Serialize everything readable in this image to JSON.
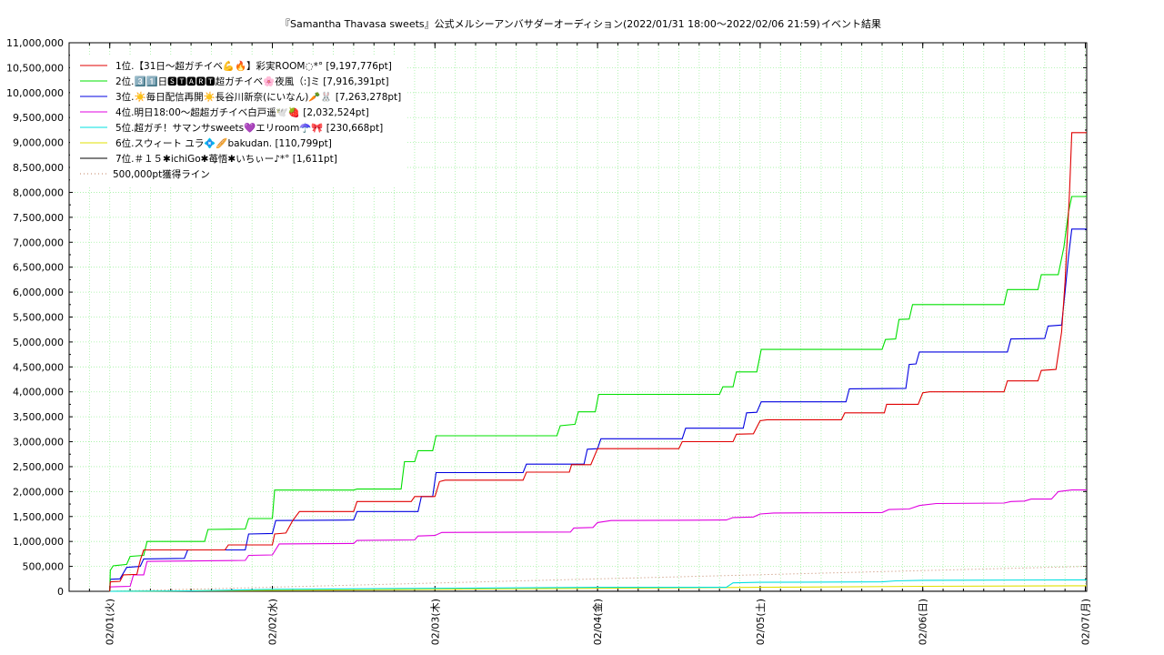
{
  "chart_data": {
    "type": "line",
    "title": "『Samantha Thavasa sweets』公式メルシーアンバサダーオーディション(2022/01/31 18:00〜2022/02/06 21:59)",
    "subtitle": "イベント結果",
    "xlabel": "",
    "ylabel": "",
    "x_ticks": [
      "02/01(火)",
      "02/02(水)",
      "02/03(木)",
      "02/04(金)",
      "02/05(土)",
      "02/06(日)",
      "02/07(月)"
    ],
    "x_range": [
      "2022-01-31 18:00",
      "2022-02-07 00:12"
    ],
    "ylim": [
      0,
      11000000
    ],
    "y_ticks": [
      "0",
      "500,000",
      "1,000,000",
      "1,500,000",
      "2,000,000",
      "2,500,000",
      "3,000,000",
      "3,500,000",
      "4,000,000",
      "4,500,000",
      "5,000,000",
      "5,500,000",
      "6,000,000",
      "6,500,000",
      "7,000,000",
      "7,500,000",
      "8,000,000",
      "8,500,000",
      "9,000,000",
      "9,500,000",
      "10,000,000",
      "10,500,000",
      "11,000,000"
    ],
    "grid": true,
    "legend_position": "top-left",
    "series": [
      {
        "name": "1位.【31日〜超ガチイベ💪🔥】彩実ROOM◌*° [9,197,776pt]",
        "color": "#e00000",
        "points": [
          [
            "02/01 00:00",
            0
          ],
          [
            "02/01 00:05",
            190000
          ],
          [
            "02/01 01:30",
            200000
          ],
          [
            "02/01 02:00",
            330000
          ],
          [
            "02/01 04:00",
            340000
          ],
          [
            "02/01 04:30",
            620000
          ],
          [
            "02/01 05:00",
            830000
          ],
          [
            "02/01 17:00",
            830000
          ],
          [
            "02/01 17:30",
            930000
          ],
          [
            "02/02 00:00",
            930000
          ],
          [
            "02/02 00:20",
            1150000
          ],
          [
            "02/02 02:00",
            1170000
          ],
          [
            "02/02 03:00",
            1420000
          ],
          [
            "02/02 04:00",
            1600000
          ],
          [
            "02/02 12:00",
            1600000
          ],
          [
            "02/02 12:30",
            1800000
          ],
          [
            "02/02 20:30",
            1800000
          ],
          [
            "02/02 21:00",
            1900000
          ],
          [
            "02/03 00:00",
            1900000
          ],
          [
            "02/03 00:40",
            2200000
          ],
          [
            "02/03 01:30",
            2230000
          ],
          [
            "02/03 13:00",
            2230000
          ],
          [
            "02/03 13:30",
            2390000
          ],
          [
            "02/03 19:50",
            2390000
          ],
          [
            "02/03 20:10",
            2540000
          ],
          [
            "02/03 23:00",
            2540000
          ],
          [
            "02/04 00:00",
            2860000
          ],
          [
            "02/04 12:00",
            2860000
          ],
          [
            "02/04 12:30",
            3000000
          ],
          [
            "02/04 20:00",
            3000000
          ],
          [
            "02/04 20:30",
            3150000
          ],
          [
            "02/04 23:00",
            3160000
          ],
          [
            "02/05 00:00",
            3420000
          ],
          [
            "02/05 01:00",
            3440000
          ],
          [
            "02/05 12:00",
            3440000
          ],
          [
            "02/05 12:30",
            3580000
          ],
          [
            "02/05 18:20",
            3580000
          ],
          [
            "02/05 18:40",
            3750000
          ],
          [
            "02/05 23:20",
            3750000
          ],
          [
            "02/06 00:00",
            3980000
          ],
          [
            "02/06 01:00",
            4000000
          ],
          [
            "02/06 12:00",
            4000000
          ],
          [
            "02/06 12:30",
            4220000
          ],
          [
            "02/06 17:00",
            4220000
          ],
          [
            "02/06 17:30",
            4430000
          ],
          [
            "02/06 19:40",
            4450000
          ],
          [
            "02/06 20:30",
            5200000
          ],
          [
            "02/06 21:00",
            6200000
          ],
          [
            "02/06 21:40",
            8000000
          ],
          [
            "02/06 22:00",
            9197776
          ],
          [
            "02/07 00:12",
            9197776
          ]
        ]
      },
      {
        "name": "2位.3️⃣1️⃣日🆂🆃🅰🆁🆃超ガチイベ🌸夜風（:]ミ [7,916,391pt]",
        "color": "#00e000",
        "points": [
          [
            "02/01 00:00",
            0
          ],
          [
            "02/01 00:05",
            420000
          ],
          [
            "02/01 00:30",
            510000
          ],
          [
            "02/01 02:30",
            540000
          ],
          [
            "02/01 03:00",
            700000
          ],
          [
            "02/01 05:00",
            720000
          ],
          [
            "02/01 05:30",
            1000000
          ],
          [
            "02/01 14:00",
            1000000
          ],
          [
            "02/01 14:30",
            1240000
          ],
          [
            "02/01 20:00",
            1250000
          ],
          [
            "02/01 20:30",
            1460000
          ],
          [
            "02/02 00:00",
            1460000
          ],
          [
            "02/02 00:20",
            2030000
          ],
          [
            "02/02 12:00",
            2030000
          ],
          [
            "02/02 12:30",
            2050000
          ],
          [
            "02/02 19:00",
            2050000
          ],
          [
            "02/02 19:30",
            2600000
          ],
          [
            "02/02 21:00",
            2600000
          ],
          [
            "02/02 21:30",
            2820000
          ],
          [
            "02/02 23:40",
            2820000
          ],
          [
            "02/03 00:10",
            3120000
          ],
          [
            "02/03 18:00",
            3120000
          ],
          [
            "02/03 18:30",
            3320000
          ],
          [
            "02/03 20:40",
            3350000
          ],
          [
            "02/03 21:10",
            3600000
          ],
          [
            "02/03 23:40",
            3600000
          ],
          [
            "02/04 00:10",
            3950000
          ],
          [
            "02/04 18:00",
            3950000
          ],
          [
            "02/04 18:30",
            4100000
          ],
          [
            "02/04 20:00",
            4100000
          ],
          [
            "02/04 20:30",
            4400000
          ],
          [
            "02/04 23:30",
            4400000
          ],
          [
            "02/05 00:10",
            4850000
          ],
          [
            "02/05 18:00",
            4850000
          ],
          [
            "02/05 18:30",
            5050000
          ],
          [
            "02/05 20:00",
            5060000
          ],
          [
            "02/05 20:30",
            5450000
          ],
          [
            "02/05 22:00",
            5460000
          ],
          [
            "02/05 22:30",
            5750000
          ],
          [
            "02/06 12:00",
            5750000
          ],
          [
            "02/06 12:30",
            6050000
          ],
          [
            "02/06 17:00",
            6050000
          ],
          [
            "02/06 17:30",
            6350000
          ],
          [
            "02/06 20:00",
            6350000
          ],
          [
            "02/06 20:50",
            6900000
          ],
          [
            "02/06 21:30",
            7600000
          ],
          [
            "02/06 22:00",
            7916391
          ],
          [
            "02/07 00:12",
            7916391
          ]
        ]
      },
      {
        "name": "3位.☀️毎日配信再開☀️長谷川新奈(にいなん)🥕🐰 [7,263,278pt]",
        "color": "#0000e0",
        "points": [
          [
            "02/01 00:00",
            0
          ],
          [
            "02/01 00:05",
            240000
          ],
          [
            "02/01 01:30",
            250000
          ],
          [
            "02/01 02:30",
            480000
          ],
          [
            "02/01 04:30",
            500000
          ],
          [
            "02/01 05:00",
            650000
          ],
          [
            "02/01 11:00",
            660000
          ],
          [
            "02/01 11:30",
            830000
          ],
          [
            "02/01 20:00",
            830000
          ],
          [
            "02/01 20:30",
            1150000
          ],
          [
            "02/02 00:00",
            1160000
          ],
          [
            "02/02 00:30",
            1420000
          ],
          [
            "02/02 12:00",
            1430000
          ],
          [
            "02/02 12:30",
            1600000
          ],
          [
            "02/02 21:30",
            1600000
          ],
          [
            "02/02 22:00",
            1900000
          ],
          [
            "02/02 23:40",
            1900000
          ],
          [
            "02/03 00:10",
            2380000
          ],
          [
            "02/03 13:00",
            2380000
          ],
          [
            "02/03 13:30",
            2550000
          ],
          [
            "02/03 22:00",
            2550000
          ],
          [
            "02/03 22:30",
            2850000
          ],
          [
            "02/04 00:00",
            2860000
          ],
          [
            "02/04 00:30",
            3060000
          ],
          [
            "02/04 12:30",
            3060000
          ],
          [
            "02/04 13:00",
            3270000
          ],
          [
            "02/04 21:30",
            3270000
          ],
          [
            "02/04 22:00",
            3580000
          ],
          [
            "02/04 23:30",
            3590000
          ],
          [
            "02/05 00:10",
            3800000
          ],
          [
            "02/05 12:40",
            3800000
          ],
          [
            "02/05 13:10",
            4060000
          ],
          [
            "02/05 21:30",
            4070000
          ],
          [
            "02/05 22:00",
            4550000
          ],
          [
            "02/05 23:00",
            4560000
          ],
          [
            "02/05 23:30",
            4800000
          ],
          [
            "02/06 12:30",
            4800000
          ],
          [
            "02/06 13:00",
            5060000
          ],
          [
            "02/06 18:00",
            5070000
          ],
          [
            "02/06 18:30",
            5320000
          ],
          [
            "02/06 20:30",
            5340000
          ],
          [
            "02/06 21:00",
            6000000
          ],
          [
            "02/06 21:30",
            6700000
          ],
          [
            "02/06 22:00",
            7263278
          ],
          [
            "02/07 00:12",
            7263278
          ]
        ]
      },
      {
        "name": "4位.明日18:00〜超超ガチイベ白戸遥🕊️🍓 [2,032,524pt]",
        "color": "#e000e0",
        "points": [
          [
            "02/01 00:00",
            0
          ],
          [
            "02/01 00:05",
            90000
          ],
          [
            "02/01 03:00",
            100000
          ],
          [
            "02/01 03:30",
            330000
          ],
          [
            "02/01 05:00",
            330000
          ],
          [
            "02/01 05:30",
            600000
          ],
          [
            "02/01 20:00",
            620000
          ],
          [
            "02/01 20:30",
            720000
          ],
          [
            "02/02 00:00",
            730000
          ],
          [
            "02/02 01:00",
            950000
          ],
          [
            "02/02 12:00",
            960000
          ],
          [
            "02/02 12:30",
            1020000
          ],
          [
            "02/02 21:00",
            1030000
          ],
          [
            "02/02 21:30",
            1110000
          ],
          [
            "02/03 00:00",
            1120000
          ],
          [
            "02/03 01:00",
            1180000
          ],
          [
            "02/03 20:00",
            1190000
          ],
          [
            "02/03 20:30",
            1270000
          ],
          [
            "02/03 23:20",
            1280000
          ],
          [
            "02/04 00:00",
            1380000
          ],
          [
            "02/04 02:00",
            1420000
          ],
          [
            "02/04 19:00",
            1430000
          ],
          [
            "02/04 20:00",
            1480000
          ],
          [
            "02/04 23:00",
            1490000
          ],
          [
            "02/05 00:00",
            1550000
          ],
          [
            "02/05 02:00",
            1570000
          ],
          [
            "02/05 18:00",
            1580000
          ],
          [
            "02/05 19:00",
            1640000
          ],
          [
            "02/05 22:00",
            1650000
          ],
          [
            "02/05 23:30",
            1720000
          ],
          [
            "02/06 02:00",
            1760000
          ],
          [
            "02/06 12:00",
            1770000
          ],
          [
            "02/06 13:00",
            1800000
          ],
          [
            "02/06 15:00",
            1810000
          ],
          [
            "02/06 16:00",
            1850000
          ],
          [
            "02/06 19:00",
            1850000
          ],
          [
            "02/06 20:00",
            2000000
          ],
          [
            "02/06 22:00",
            2032524
          ],
          [
            "02/07 00:12",
            2032524
          ]
        ]
      },
      {
        "name": "5位.超ガチ！サマンサsweets💜エリroom☂️🎀 [230,668pt]",
        "color": "#00e0e0",
        "points": [
          [
            "02/01 00:00",
            0
          ],
          [
            "02/01 12:00",
            10000
          ],
          [
            "02/02 00:00",
            40000
          ],
          [
            "02/03 00:00",
            60000
          ],
          [
            "02/04 00:00",
            80000
          ],
          [
            "02/04 19:00",
            80000
          ],
          [
            "02/04 20:00",
            170000
          ],
          [
            "02/05 00:00",
            180000
          ],
          [
            "02/05 18:00",
            190000
          ],
          [
            "02/05 20:00",
            210000
          ],
          [
            "02/06 00:00",
            220000
          ],
          [
            "02/06 22:00",
            230668
          ],
          [
            "02/07 00:12",
            230668
          ]
        ]
      },
      {
        "name": "6位.スウィート ユラ💠🥖bakudan. [110,799pt]",
        "color": "#e0e000",
        "points": [
          [
            "02/01 00:00",
            0
          ],
          [
            "02/02 00:00",
            20000
          ],
          [
            "02/03 00:00",
            40000
          ],
          [
            "02/04 00:00",
            60000
          ],
          [
            "02/05 00:00",
            80000
          ],
          [
            "02/06 00:00",
            100000
          ],
          [
            "02/06 22:00",
            110799
          ],
          [
            "02/07 00:12",
            110799
          ]
        ]
      },
      {
        "name": "7位.＃１５✱ichiGo✱苺悟✱いちぃー♪*° [1,611pt]",
        "color": "#000000",
        "points": [
          [
            "02/01 00:00",
            0
          ],
          [
            "02/03 00:00",
            1000
          ],
          [
            "02/06 22:00",
            1611
          ],
          [
            "02/07 00:12",
            1611
          ]
        ]
      }
    ],
    "reference_line": {
      "name": "500,000pt獲得ライン",
      "color": "#c08060",
      "points": [
        [
          "02/01 00:00",
          0
        ],
        [
          "02/07 00:12",
          500000
        ]
      ]
    }
  }
}
